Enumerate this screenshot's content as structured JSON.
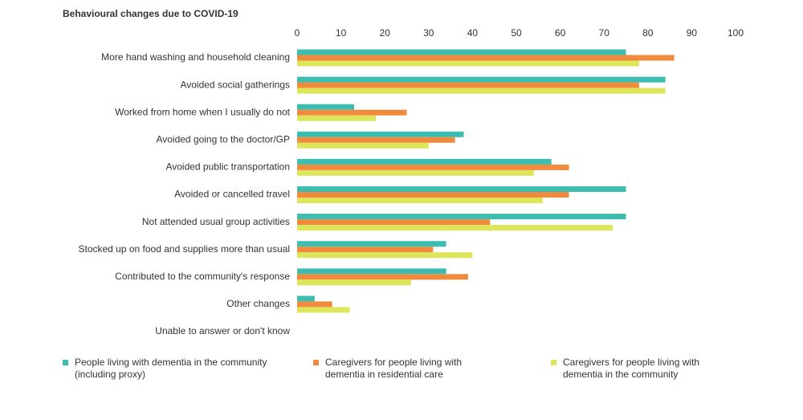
{
  "chart_data": {
    "type": "hbar",
    "title": "Behavioural changes due to COVID-19",
    "categories": [
      "More hand washing and household cleaning",
      "Avoided social gatherings",
      "Worked from home when I usually do not",
      "Avoided going to the doctor/GP",
      "Avoided public transportation",
      "Avoided or cancelled travel",
      "Not attended usual group activities",
      "Stocked up on food and supplies more than usual",
      "Contributed to the community's response",
      "Other changes",
      "Unable to answer or don't know"
    ],
    "series": [
      {
        "name": "People living with dementia in the community (including proxy)",
        "color": "#3dbdb0",
        "values": [
          75,
          84,
          13,
          38,
          58,
          75,
          75,
          34,
          34,
          4,
          0
        ]
      },
      {
        "name": "Caregivers for people living with dementia in residential care",
        "color": "#f08a3c",
        "values": [
          86,
          78,
          25,
          36,
          62,
          62,
          44,
          31,
          39,
          8,
          0
        ]
      },
      {
        "name": "Caregivers for people living with dementia in the community",
        "color": "#dde55a",
        "values": [
          78,
          84,
          18,
          30,
          54,
          56,
          72,
          40,
          26,
          12,
          0
        ]
      }
    ],
    "xlim": [
      0,
      100
    ],
    "xticks": [
      0,
      10,
      20,
      30,
      40,
      50,
      60,
      70,
      80,
      90,
      100
    ],
    "grid": false,
    "legend": "bottom"
  }
}
